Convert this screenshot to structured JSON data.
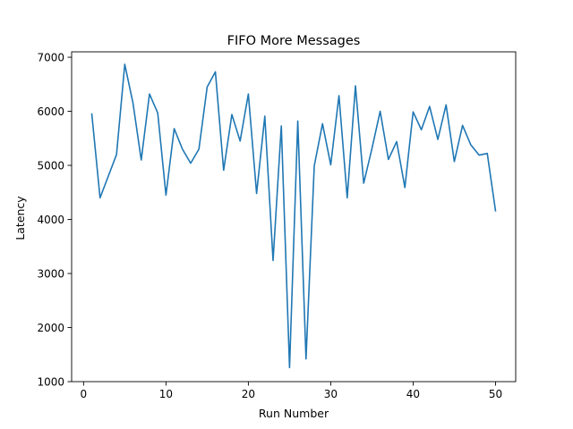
{
  "chart_data": {
    "type": "line",
    "title": "FIFO More Messages",
    "xlabel": "Run Number",
    "ylabel": "Latency",
    "xlim": [
      -1.45,
      52.45
    ],
    "ylim": [
      1000,
      7100
    ],
    "xticks": [
      0,
      10,
      20,
      30,
      40,
      50
    ],
    "yticks": [
      1000,
      2000,
      3000,
      4000,
      5000,
      6000,
      7000
    ],
    "grid": false,
    "legend": "none",
    "series": [
      {
        "color": "#1f77b4",
        "x": [
          1,
          2,
          3,
          4,
          5,
          6,
          7,
          8,
          9,
          10,
          11,
          12,
          13,
          14,
          15,
          16,
          17,
          18,
          19,
          20,
          21,
          22,
          23,
          24,
          25,
          26,
          27,
          28,
          29,
          30,
          31,
          32,
          33,
          34,
          35,
          36,
          37,
          38,
          39,
          40,
          41,
          42,
          43,
          44,
          45,
          46,
          47,
          48,
          49,
          50
        ],
        "values": [
          5950,
          4400,
          4800,
          5200,
          6870,
          6150,
          5100,
          6320,
          5970,
          4450,
          5680,
          5300,
          5040,
          5300,
          6450,
          6730,
          4910,
          5940,
          5450,
          6320,
          4480,
          5910,
          3240,
          5730,
          1260,
          5820,
          1420,
          4990,
          5770,
          5010,
          6290,
          4400,
          6470,
          4670,
          5310,
          6000,
          5110,
          5440,
          4590,
          5990,
          5660,
          6090,
          5480,
          6120,
          5070,
          5740,
          5380,
          5190,
          5220,
          4160
        ]
      }
    ]
  }
}
